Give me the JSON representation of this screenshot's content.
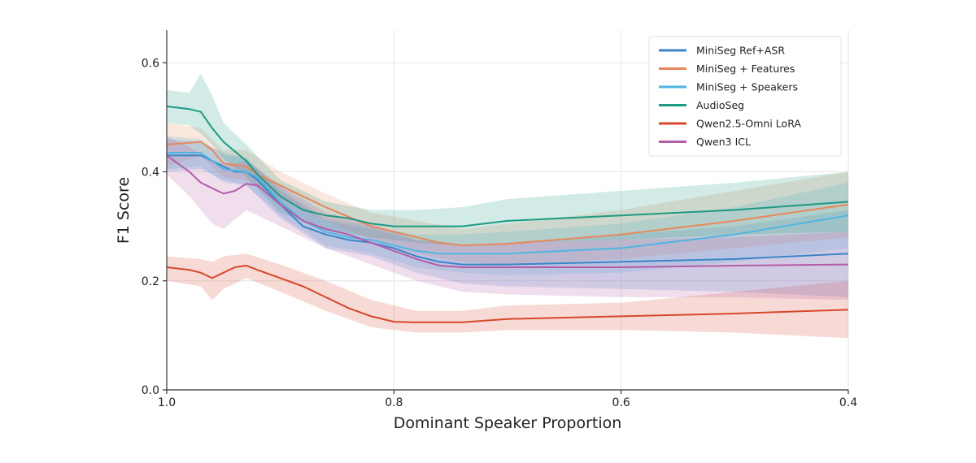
{
  "chart_data": {
    "type": "line",
    "xlabel": "Dominant Speaker Proportion",
    "ylabel": "F1 Score",
    "xlim": [
      1.0,
      0.4
    ],
    "ylim": [
      0.0,
      0.66
    ],
    "x_reversed": true,
    "xticks": [
      1.0,
      0.8,
      0.6,
      0.4
    ],
    "xtick_labels": [
      "1.0",
      "0.8",
      "0.6",
      "0.4"
    ],
    "yticks": [
      0.0,
      0.2,
      0.4,
      0.6
    ],
    "ytick_labels": [
      "0.0",
      "0.2",
      "0.4",
      "0.6"
    ],
    "grid": true,
    "legend_position": "top-right",
    "band_opacity": 0.2,
    "series": [
      {
        "name": "MiniSeg Ref+ASR",
        "color": "#3a86c8",
        "points": [
          [
            1.0,
            0.43
          ],
          [
            0.97,
            0.43
          ],
          [
            0.96,
            0.42
          ],
          [
            0.95,
            0.41
          ],
          [
            0.94,
            0.4
          ],
          [
            0.93,
            0.4
          ],
          [
            0.92,
            0.385
          ],
          [
            0.9,
            0.34
          ],
          [
            0.88,
            0.3
          ],
          [
            0.86,
            0.285
          ],
          [
            0.84,
            0.275
          ],
          [
            0.82,
            0.27
          ],
          [
            0.8,
            0.26
          ],
          [
            0.78,
            0.245
          ],
          [
            0.76,
            0.235
          ],
          [
            0.74,
            0.23
          ],
          [
            0.7,
            0.23
          ],
          [
            0.6,
            0.235
          ],
          [
            0.5,
            0.24
          ],
          [
            0.4,
            0.25
          ]
        ],
        "band": [
          [
            1.0,
            0.4,
            0.46
          ],
          [
            0.97,
            0.405,
            0.455
          ],
          [
            0.95,
            0.385,
            0.435
          ],
          [
            0.93,
            0.375,
            0.425
          ],
          [
            0.9,
            0.315,
            0.365
          ],
          [
            0.86,
            0.26,
            0.31
          ],
          [
            0.82,
            0.245,
            0.295
          ],
          [
            0.78,
            0.215,
            0.275
          ],
          [
            0.74,
            0.195,
            0.265
          ],
          [
            0.7,
            0.19,
            0.27
          ],
          [
            0.6,
            0.185,
            0.285
          ],
          [
            0.5,
            0.18,
            0.3
          ],
          [
            0.4,
            0.17,
            0.33
          ]
        ]
      },
      {
        "name": "MiniSeg + Features",
        "color": "#e8875a",
        "points": [
          [
            1.0,
            0.45
          ],
          [
            0.97,
            0.455
          ],
          [
            0.96,
            0.44
          ],
          [
            0.95,
            0.415
          ],
          [
            0.93,
            0.41
          ],
          [
            0.92,
            0.395
          ],
          [
            0.9,
            0.375
          ],
          [
            0.86,
            0.335
          ],
          [
            0.82,
            0.3
          ],
          [
            0.8,
            0.29
          ],
          [
            0.78,
            0.28
          ],
          [
            0.76,
            0.27
          ],
          [
            0.74,
            0.265
          ],
          [
            0.7,
            0.268
          ],
          [
            0.6,
            0.285
          ],
          [
            0.5,
            0.31
          ],
          [
            0.4,
            0.34
          ]
        ],
        "band": [
          [
            1.0,
            0.41,
            0.49
          ],
          [
            0.97,
            0.43,
            0.48
          ],
          [
            0.95,
            0.39,
            0.44
          ],
          [
            0.93,
            0.385,
            0.44
          ],
          [
            0.9,
            0.35,
            0.4
          ],
          [
            0.86,
            0.31,
            0.36
          ],
          [
            0.82,
            0.275,
            0.325
          ],
          [
            0.78,
            0.25,
            0.31
          ],
          [
            0.74,
            0.235,
            0.295
          ],
          [
            0.7,
            0.23,
            0.305
          ],
          [
            0.6,
            0.24,
            0.33
          ],
          [
            0.5,
            0.26,
            0.365
          ],
          [
            0.4,
            0.28,
            0.4
          ]
        ]
      },
      {
        "name": "MiniSeg + Speakers",
        "color": "#4fb6e3",
        "points": [
          [
            1.0,
            0.435
          ],
          [
            0.97,
            0.435
          ],
          [
            0.96,
            0.42
          ],
          [
            0.95,
            0.405
          ],
          [
            0.93,
            0.4
          ],
          [
            0.92,
            0.39
          ],
          [
            0.9,
            0.345
          ],
          [
            0.88,
            0.31
          ],
          [
            0.86,
            0.29
          ],
          [
            0.84,
            0.28
          ],
          [
            0.82,
            0.275
          ],
          [
            0.8,
            0.265
          ],
          [
            0.78,
            0.255
          ],
          [
            0.76,
            0.25
          ],
          [
            0.74,
            0.25
          ],
          [
            0.7,
            0.25
          ],
          [
            0.6,
            0.26
          ],
          [
            0.5,
            0.285
          ],
          [
            0.4,
            0.32
          ]
        ],
        "band": [
          [
            1.0,
            0.405,
            0.465
          ],
          [
            0.97,
            0.41,
            0.46
          ],
          [
            0.95,
            0.38,
            0.43
          ],
          [
            0.93,
            0.375,
            0.425
          ],
          [
            0.9,
            0.32,
            0.37
          ],
          [
            0.86,
            0.265,
            0.315
          ],
          [
            0.82,
            0.25,
            0.3
          ],
          [
            0.78,
            0.225,
            0.285
          ],
          [
            0.74,
            0.215,
            0.285
          ],
          [
            0.7,
            0.21,
            0.29
          ],
          [
            0.6,
            0.215,
            0.305
          ],
          [
            0.5,
            0.235,
            0.335
          ],
          [
            0.4,
            0.26,
            0.38
          ]
        ]
      },
      {
        "name": "AudioSeg",
        "color": "#1d9a84",
        "points": [
          [
            1.0,
            0.52
          ],
          [
            0.98,
            0.515
          ],
          [
            0.97,
            0.51
          ],
          [
            0.96,
            0.48
          ],
          [
            0.95,
            0.455
          ],
          [
            0.93,
            0.42
          ],
          [
            0.92,
            0.395
          ],
          [
            0.9,
            0.355
          ],
          [
            0.88,
            0.33
          ],
          [
            0.86,
            0.32
          ],
          [
            0.84,
            0.315
          ],
          [
            0.82,
            0.305
          ],
          [
            0.8,
            0.3
          ],
          [
            0.78,
            0.3
          ],
          [
            0.76,
            0.3
          ],
          [
            0.74,
            0.3
          ],
          [
            0.7,
            0.31
          ],
          [
            0.6,
            0.32
          ],
          [
            0.5,
            0.33
          ],
          [
            0.4,
            0.345
          ]
        ],
        "band": [
          [
            1.0,
            0.49,
            0.55
          ],
          [
            0.98,
            0.485,
            0.545
          ],
          [
            0.97,
            0.47,
            0.58
          ],
          [
            0.96,
            0.45,
            0.54
          ],
          [
            0.95,
            0.425,
            0.49
          ],
          [
            0.93,
            0.39,
            0.45
          ],
          [
            0.9,
            0.325,
            0.385
          ],
          [
            0.86,
            0.295,
            0.345
          ],
          [
            0.82,
            0.28,
            0.33
          ],
          [
            0.78,
            0.27,
            0.33
          ],
          [
            0.74,
            0.265,
            0.335
          ],
          [
            0.7,
            0.27,
            0.35
          ],
          [
            0.6,
            0.275,
            0.365
          ],
          [
            0.5,
            0.285,
            0.38
          ],
          [
            0.4,
            0.29,
            0.4
          ]
        ]
      },
      {
        "name": "Qwen2.5-Omni LoRA",
        "color": "#d6472b",
        "points": [
          [
            1.0,
            0.225
          ],
          [
            0.98,
            0.22
          ],
          [
            0.97,
            0.215
          ],
          [
            0.96,
            0.205
          ],
          [
            0.95,
            0.215
          ],
          [
            0.94,
            0.225
          ],
          [
            0.93,
            0.228
          ],
          [
            0.92,
            0.22
          ],
          [
            0.9,
            0.205
          ],
          [
            0.88,
            0.19
          ],
          [
            0.86,
            0.17
          ],
          [
            0.84,
            0.15
          ],
          [
            0.82,
            0.135
          ],
          [
            0.8,
            0.125
          ],
          [
            0.78,
            0.124
          ],
          [
            0.76,
            0.124
          ],
          [
            0.74,
            0.124
          ],
          [
            0.7,
            0.13
          ],
          [
            0.6,
            0.135
          ],
          [
            0.5,
            0.14
          ],
          [
            0.4,
            0.147
          ]
        ],
        "band": [
          [
            1.0,
            0.2,
            0.245
          ],
          [
            0.97,
            0.19,
            0.24
          ],
          [
            0.96,
            0.165,
            0.235
          ],
          [
            0.95,
            0.185,
            0.245
          ],
          [
            0.93,
            0.205,
            0.25
          ],
          [
            0.9,
            0.18,
            0.23
          ],
          [
            0.86,
            0.145,
            0.2
          ],
          [
            0.82,
            0.115,
            0.165
          ],
          [
            0.78,
            0.105,
            0.145
          ],
          [
            0.74,
            0.105,
            0.145
          ],
          [
            0.7,
            0.11,
            0.155
          ],
          [
            0.6,
            0.11,
            0.16
          ],
          [
            0.5,
            0.105,
            0.18
          ],
          [
            0.4,
            0.095,
            0.2
          ]
        ]
      },
      {
        "name": "Qwen3 ICL",
        "color": "#b35ca6",
        "points": [
          [
            1.0,
            0.43
          ],
          [
            0.98,
            0.4
          ],
          [
            0.97,
            0.38
          ],
          [
            0.96,
            0.37
          ],
          [
            0.95,
            0.36
          ],
          [
            0.94,
            0.365
          ],
          [
            0.93,
            0.378
          ],
          [
            0.92,
            0.375
          ],
          [
            0.9,
            0.34
          ],
          [
            0.88,
            0.31
          ],
          [
            0.86,
            0.295
          ],
          [
            0.84,
            0.285
          ],
          [
            0.82,
            0.27
          ],
          [
            0.8,
            0.255
          ],
          [
            0.78,
            0.24
          ],
          [
            0.76,
            0.228
          ],
          [
            0.74,
            0.225
          ],
          [
            0.7,
            0.225
          ],
          [
            0.6,
            0.225
          ],
          [
            0.5,
            0.228
          ],
          [
            0.4,
            0.23
          ]
        ],
        "band": [
          [
            1.0,
            0.395,
            0.465
          ],
          [
            0.98,
            0.355,
            0.445
          ],
          [
            0.96,
            0.305,
            0.42
          ],
          [
            0.95,
            0.295,
            0.41
          ],
          [
            0.93,
            0.33,
            0.42
          ],
          [
            0.9,
            0.3,
            0.375
          ],
          [
            0.86,
            0.26,
            0.325
          ],
          [
            0.82,
            0.23,
            0.305
          ],
          [
            0.78,
            0.2,
            0.275
          ],
          [
            0.74,
            0.18,
            0.265
          ],
          [
            0.7,
            0.175,
            0.27
          ],
          [
            0.6,
            0.17,
            0.275
          ],
          [
            0.5,
            0.17,
            0.28
          ],
          [
            0.4,
            0.165,
            0.29
          ]
        ]
      }
    ]
  }
}
